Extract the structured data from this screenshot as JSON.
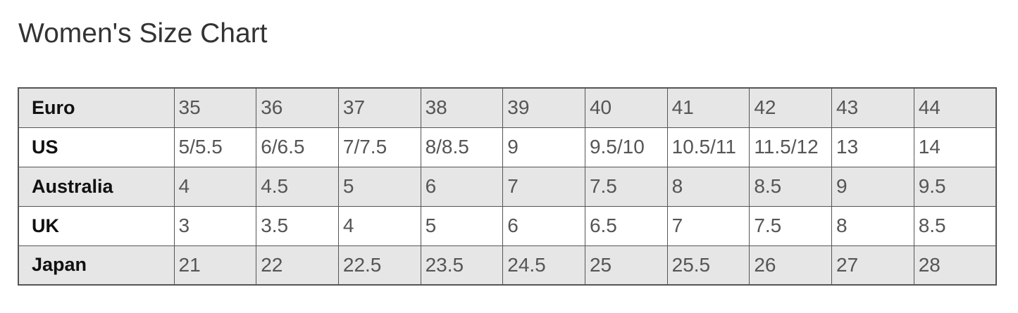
{
  "title": "Women's Size Chart",
  "colors": {
    "shaded_row": "#e6e6e6",
    "border": "#555555"
  },
  "table": {
    "rows": [
      {
        "label": "Euro",
        "values": [
          "35",
          "36",
          "37",
          "38",
          "39",
          "40",
          "41",
          "42",
          "43",
          "44"
        ]
      },
      {
        "label": "US",
        "values": [
          "5/5.5",
          "6/6.5",
          "7/7.5",
          "8/8.5",
          "9",
          "9.5/10",
          "10.5/11",
          "11.5/12",
          "13",
          "14"
        ]
      },
      {
        "label": "Australia",
        "values": [
          "4",
          "4.5",
          "5",
          "6",
          "7",
          "7.5",
          "8",
          "8.5",
          "9",
          "9.5"
        ]
      },
      {
        "label": "UK",
        "values": [
          "3",
          "3.5",
          "4",
          "5",
          "6",
          "6.5",
          "7",
          "7.5",
          "8",
          "8.5"
        ]
      },
      {
        "label": "Japan",
        "values": [
          "21",
          "22",
          "22.5",
          "23.5",
          "24.5",
          "25",
          "25.5",
          "26",
          "27",
          "28"
        ]
      }
    ]
  }
}
